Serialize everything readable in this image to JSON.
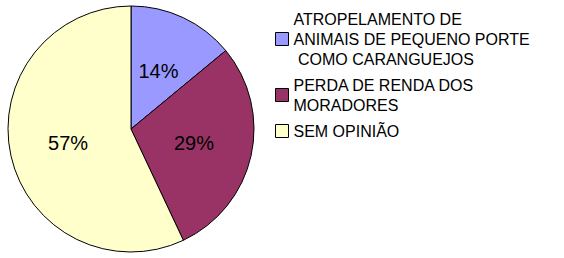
{
  "chart_data": {
    "type": "pie",
    "categories": [
      "ATROPELAMENTO DE ANIMAIS DE PEQUENO PORTE COMO CARANGUEJOS",
      "PERDA DE RENDA DOS MORADORES",
      "SEM OPINIÃO"
    ],
    "values": [
      14,
      29,
      57
    ],
    "value_labels": [
      "14%",
      "29%",
      "57%"
    ],
    "colors": [
      "#9999ff",
      "#993366",
      "#ffffcc"
    ],
    "data_labels": true,
    "legend": "right"
  }
}
